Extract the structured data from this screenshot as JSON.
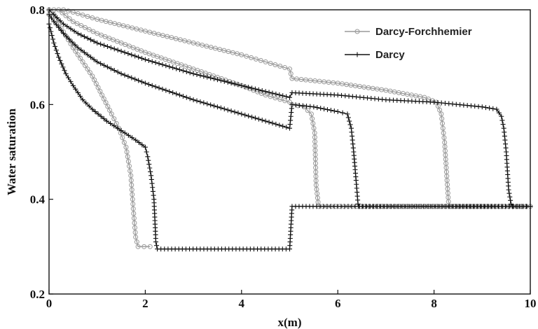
{
  "chart_data": {
    "type": "line",
    "title": "",
    "xlabel": "x(m)",
    "ylabel": "Water saturation",
    "xlim": [
      0,
      10
    ],
    "ylim": [
      0.2,
      0.8
    ],
    "xticks": [
      "0",
      "2",
      "4",
      "6",
      "8",
      "10"
    ],
    "yticks": [
      "0.2",
      "0.4",
      "0.6",
      "0.8"
    ],
    "grid": false,
    "legend_position": "top-right",
    "legend": [
      {
        "label": "Darcy-Forchhemier",
        "color": "#9a9a9a",
        "marker": "circle"
      },
      {
        "label": "Darcy",
        "color": "#111111",
        "marker": "plus"
      }
    ],
    "series": [
      {
        "group": "Darcy-Forchhemier",
        "color": "#9a9a9a",
        "marker": "circle",
        "points": [
          [
            0,
            0.79
          ],
          [
            0.1,
            0.79
          ],
          [
            0.2,
            0.77
          ],
          [
            0.35,
            0.745
          ],
          [
            0.5,
            0.72
          ],
          [
            0.7,
            0.69
          ],
          [
            0.9,
            0.66
          ],
          [
            1.1,
            0.62
          ],
          [
            1.3,
            0.58
          ],
          [
            1.45,
            0.55
          ],
          [
            1.6,
            0.51
          ],
          [
            1.7,
            0.45
          ],
          [
            1.75,
            0.38
          ],
          [
            1.8,
            0.32
          ],
          [
            1.85,
            0.3
          ],
          [
            2.1,
            0.3
          ]
        ]
      },
      {
        "group": "Darcy-Forchhemier",
        "color": "#9a9a9a",
        "marker": "circle",
        "points": [
          [
            0,
            0.8
          ],
          [
            0.2,
            0.8
          ],
          [
            0.5,
            0.775
          ],
          [
            1.0,
            0.75
          ],
          [
            2.0,
            0.71
          ],
          [
            3.0,
            0.675
          ],
          [
            4.0,
            0.64
          ],
          [
            4.5,
            0.62
          ],
          [
            5.0,
            0.605
          ],
          [
            5.05,
            0.6
          ],
          [
            5.3,
            0.595
          ],
          [
            5.45,
            0.58
          ],
          [
            5.52,
            0.54
          ],
          [
            5.55,
            0.43
          ],
          [
            5.6,
            0.385
          ],
          [
            10,
            0.385
          ]
        ]
      },
      {
        "group": "Darcy-Forchhemier",
        "color": "#9a9a9a",
        "marker": "circle",
        "points": [
          [
            0.3,
            0.8
          ],
          [
            0.5,
            0.795
          ],
          [
            1.0,
            0.78
          ],
          [
            2.0,
            0.755
          ],
          [
            3.0,
            0.73
          ],
          [
            4.0,
            0.705
          ],
          [
            4.5,
            0.69
          ],
          [
            5.0,
            0.675
          ],
          [
            5.05,
            0.655
          ],
          [
            6.0,
            0.645
          ],
          [
            7.0,
            0.63
          ],
          [
            7.8,
            0.615
          ],
          [
            8.05,
            0.605
          ],
          [
            8.15,
            0.58
          ],
          [
            8.22,
            0.52
          ],
          [
            8.27,
            0.44
          ],
          [
            8.3,
            0.395
          ],
          [
            8.35,
            0.385
          ],
          [
            10,
            0.385
          ]
        ]
      },
      {
        "group": "Darcy",
        "color": "#111111",
        "marker": "plus",
        "points": [
          [
            0,
            0.77
          ],
          [
            0.1,
            0.73
          ],
          [
            0.2,
            0.7
          ],
          [
            0.35,
            0.665
          ],
          [
            0.5,
            0.64
          ],
          [
            0.7,
            0.61
          ],
          [
            0.9,
            0.59
          ],
          [
            1.2,
            0.565
          ],
          [
            1.5,
            0.545
          ],
          [
            1.8,
            0.525
          ],
          [
            2.0,
            0.51
          ],
          [
            2.05,
            0.49
          ],
          [
            2.12,
            0.45
          ],
          [
            2.18,
            0.4
          ],
          [
            2.22,
            0.31
          ],
          [
            2.25,
            0.295
          ],
          [
            5.0,
            0.295
          ],
          [
            5.05,
            0.385
          ],
          [
            10,
            0.385
          ]
        ]
      },
      {
        "group": "Darcy",
        "color": "#111111",
        "marker": "plus",
        "points": [
          [
            0,
            0.79
          ],
          [
            0.1,
            0.775
          ],
          [
            0.3,
            0.75
          ],
          [
            0.6,
            0.72
          ],
          [
            1.0,
            0.69
          ],
          [
            1.5,
            0.665
          ],
          [
            2.0,
            0.645
          ],
          [
            3.0,
            0.61
          ],
          [
            4.0,
            0.58
          ],
          [
            5.0,
            0.55
          ],
          [
            5.05,
            0.6
          ],
          [
            5.5,
            0.595
          ],
          [
            6.0,
            0.585
          ],
          [
            6.2,
            0.58
          ],
          [
            6.28,
            0.55
          ],
          [
            6.33,
            0.5
          ],
          [
            6.38,
            0.44
          ],
          [
            6.42,
            0.39
          ],
          [
            6.45,
            0.385
          ],
          [
            10,
            0.385
          ]
        ]
      },
      {
        "group": "Darcy",
        "color": "#111111",
        "marker": "plus",
        "points": [
          [
            0,
            0.8
          ],
          [
            0.1,
            0.79
          ],
          [
            0.3,
            0.77
          ],
          [
            0.6,
            0.75
          ],
          [
            1.0,
            0.73
          ],
          [
            2.0,
            0.695
          ],
          [
            3.0,
            0.665
          ],
          [
            4.0,
            0.64
          ],
          [
            5.0,
            0.615
          ],
          [
            5.05,
            0.625
          ],
          [
            6.0,
            0.62
          ],
          [
            7.0,
            0.61
          ],
          [
            8.0,
            0.605
          ],
          [
            9.0,
            0.595
          ],
          [
            9.3,
            0.59
          ],
          [
            9.4,
            0.575
          ],
          [
            9.45,
            0.55
          ],
          [
            9.5,
            0.5
          ],
          [
            9.55,
            0.42
          ],
          [
            9.6,
            0.39
          ],
          [
            9.65,
            0.385
          ],
          [
            10,
            0.385
          ]
        ]
      }
    ]
  }
}
